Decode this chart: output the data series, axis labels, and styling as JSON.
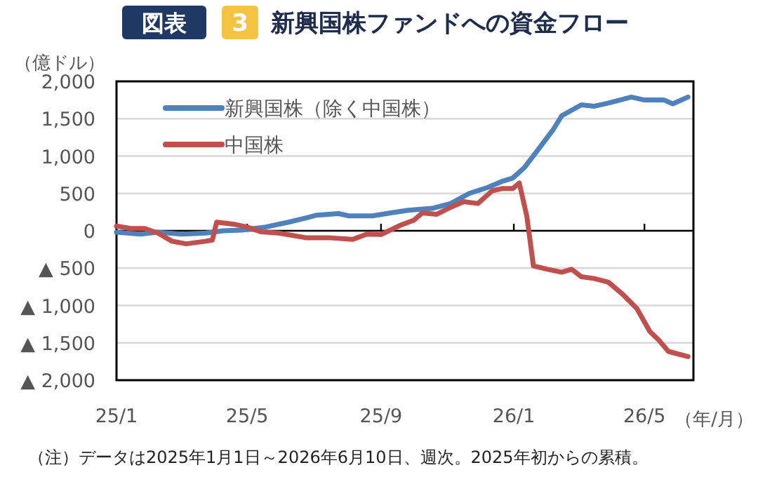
{
  "chart_data": {
    "type": "line",
    "title": "新興国株ファンドへの資金フロー",
    "ylabel": "（億ドル）",
    "xlabel": "（年/月）",
    "annotations": [
      "図表",
      "3",
      "（注）データは2025年1月1日～2026年6月10日、週次。2025年初からの累積。"
    ],
    "xlim": [
      "2025-01-01",
      "2026-06-15"
    ],
    "xticks": [
      {
        "value": "2025-01-01",
        "label": "25/1"
      },
      {
        "value": "2025-05-01",
        "label": "25/5"
      },
      {
        "value": "2025-09-01",
        "label": "25/9"
      },
      {
        "value": "2026-01-01",
        "label": "26/1"
      },
      {
        "value": "2026-05-01",
        "label": "26/5"
      }
    ],
    "ylim": [
      -2000,
      2000
    ],
    "yticks": [
      {
        "value": 2000,
        "label": "2,000"
      },
      {
        "value": 1500,
        "label": "1,500"
      },
      {
        "value": 1000,
        "label": "1,000"
      },
      {
        "value": 500,
        "label": "500"
      },
      {
        "value": 0,
        "label": "0"
      },
      {
        "value": -500,
        "label": "▲ 500"
      },
      {
        "value": -1000,
        "label": "▲ 1,000"
      },
      {
        "value": -1500,
        "label": "▲ 1,500"
      },
      {
        "value": -2000,
        "label": "▲ 2,000"
      }
    ],
    "grid": "y",
    "legend": "top left",
    "line_style": "solid",
    "series": [
      {
        "name": "新興国株（除く中国株）",
        "color": "#4f81bd",
        "x": [
          "2025-01-01",
          "2025-01-23",
          "2025-02-08",
          "2025-03-02",
          "2025-03-24",
          "2025-04-09",
          "2025-04-26",
          "2025-05-18",
          "2025-06-08",
          "2025-06-25",
          "2025-07-04",
          "2025-07-24",
          "2025-08-02",
          "2025-08-24",
          "2025-09-10",
          "2025-09-26",
          "2025-10-18",
          "2025-11-04",
          "2025-11-21",
          "2025-12-08",
          "2025-12-21",
          "2025-12-31",
          "2026-01-11",
          "2026-01-24",
          "2026-02-06",
          "2026-02-14",
          "2026-03-04",
          "2026-03-16",
          "2026-03-29",
          "2026-04-19",
          "2026-05-01",
          "2026-05-19",
          "2026-05-27",
          "2026-06-10"
        ],
        "values": [
          -20,
          -45,
          -20,
          -45,
          -30,
          0,
          10,
          50,
          115,
          175,
          210,
          230,
          200,
          200,
          240,
          275,
          300,
          365,
          500,
          580,
          660,
          705,
          850,
          1100,
          1350,
          1540,
          1685,
          1667,
          1710,
          1790,
          1750,
          1750,
          1700,
          1790
        ]
      },
      {
        "name": "中国株",
        "color": "#c0504d",
        "x": [
          "2025-01-01",
          "2025-01-14",
          "2025-01-27",
          "2025-02-08",
          "2025-02-21",
          "2025-03-06",
          "2025-03-24",
          "2025-03-30",
          "2025-04-03",
          "2025-04-18",
          "2025-05-01",
          "2025-05-14",
          "2025-05-30",
          "2025-06-25",
          "2025-07-17",
          "2025-08-06",
          "2025-08-19",
          "2025-09-01",
          "2025-09-19",
          "2025-10-01",
          "2025-10-09",
          "2025-10-22",
          "2025-11-04",
          "2025-11-16",
          "2025-11-29",
          "2025-12-12",
          "2025-12-21",
          "2025-12-31",
          "2026-01-06",
          "2026-01-13",
          "2026-01-19",
          "2026-02-01",
          "2026-02-14",
          "2026-02-23",
          "2026-03-04",
          "2026-03-16",
          "2026-03-29",
          "2026-04-11",
          "2026-04-24",
          "2026-05-06",
          "2026-05-14",
          "2026-05-23",
          "2026-06-10"
        ],
        "values": [
          63,
          30,
          30,
          -30,
          -140,
          -175,
          -140,
          -125,
          115,
          90,
          50,
          -15,
          -30,
          -95,
          -95,
          -115,
          -45,
          -50,
          75,
          140,
          240,
          220,
          315,
          390,
          365,
          535,
          565,
          565,
          640,
          190,
          -470,
          -515,
          -555,
          -515,
          -615,
          -640,
          -690,
          -850,
          -1040,
          -1350,
          -1460,
          -1615,
          -1685
        ]
      }
    ]
  }
}
